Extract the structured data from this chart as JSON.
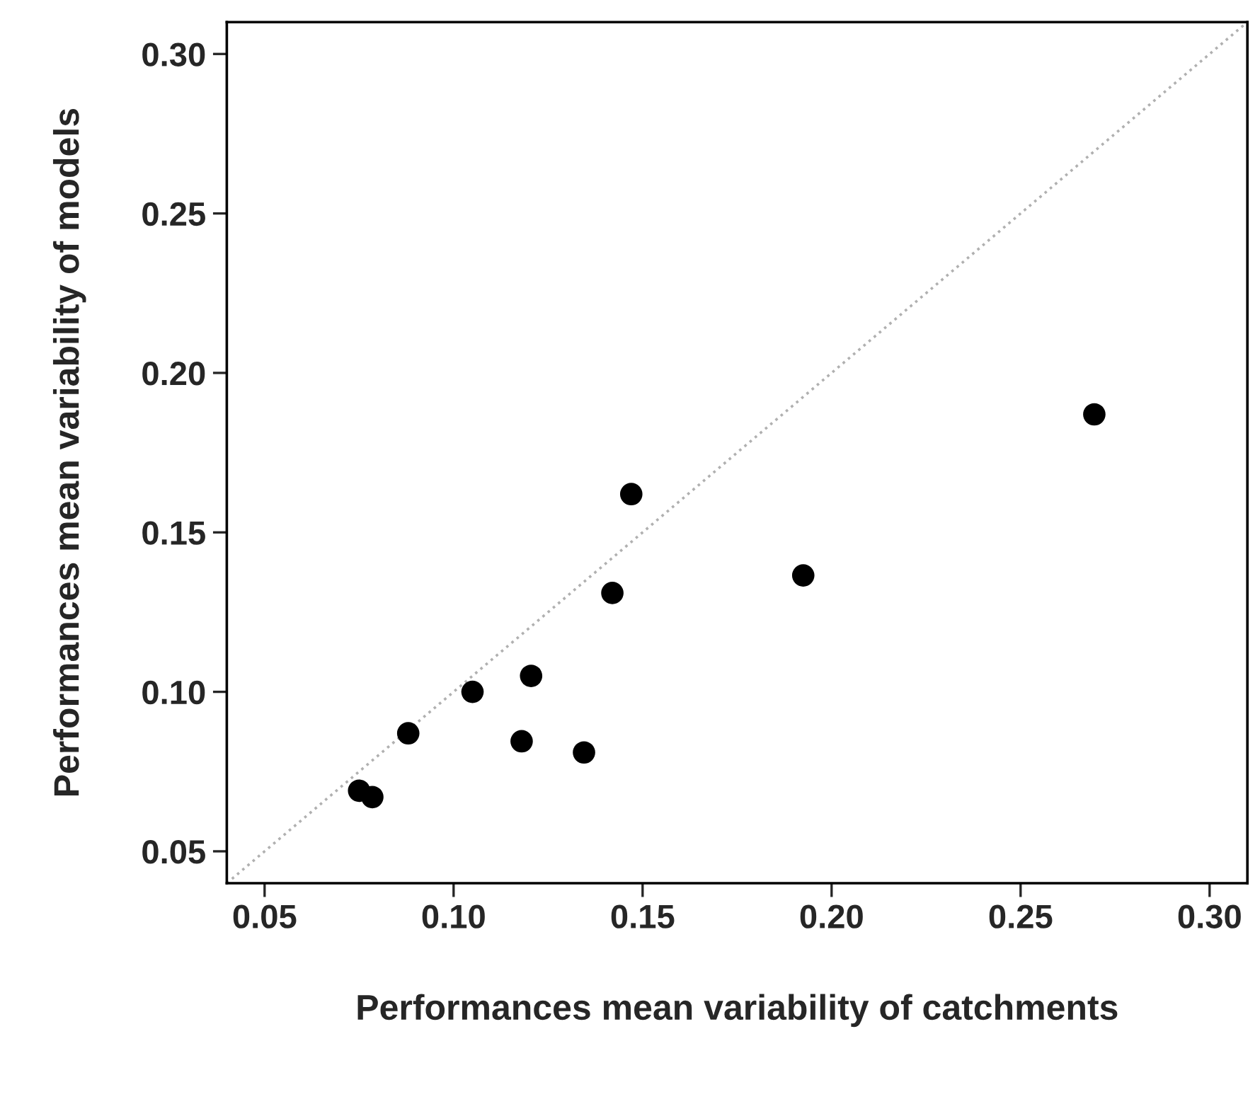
{
  "chart_data": {
    "type": "scatter",
    "xlabel": "Performances mean variability of catchments",
    "ylabel": "Performances mean variability of models",
    "xlim": [
      0.04,
      0.31
    ],
    "ylim": [
      0.04,
      0.31
    ],
    "xticks": [
      {
        "value": 0.05,
        "label": "0.05"
      },
      {
        "value": 0.1,
        "label": "0.10"
      },
      {
        "value": 0.15,
        "label": "0.15"
      },
      {
        "value": 0.2,
        "label": "0.20"
      },
      {
        "value": 0.25,
        "label": "0.25"
      },
      {
        "value": 0.3,
        "label": "0.30"
      }
    ],
    "yticks": [
      {
        "value": 0.05,
        "label": "0.05"
      },
      {
        "value": 0.1,
        "label": "0.10"
      },
      {
        "value": 0.15,
        "label": "0.15"
      },
      {
        "value": 0.2,
        "label": "0.20"
      },
      {
        "value": 0.25,
        "label": "0.25"
      },
      {
        "value": 0.3,
        "label": "0.30"
      }
    ],
    "grid": false,
    "legend": false,
    "series": [
      {
        "color": "#000000",
        "marker": "circle",
        "x": [
          0.075,
          0.0785,
          0.088,
          0.105,
          0.118,
          0.1205,
          0.1345,
          0.142,
          0.147,
          0.1925,
          0.2695
        ],
        "values": [
          0.069,
          0.067,
          0.087,
          0.1,
          0.0845,
          0.105,
          0.081,
          0.131,
          0.162,
          0.1365,
          0.187
        ]
      },
      {
        "type": "line",
        "color": "#b0b0b0",
        "line_style": "dotted",
        "x": [
          0.04,
          0.31
        ],
        "values": [
          0.04,
          0.31
        ]
      }
    ]
  }
}
